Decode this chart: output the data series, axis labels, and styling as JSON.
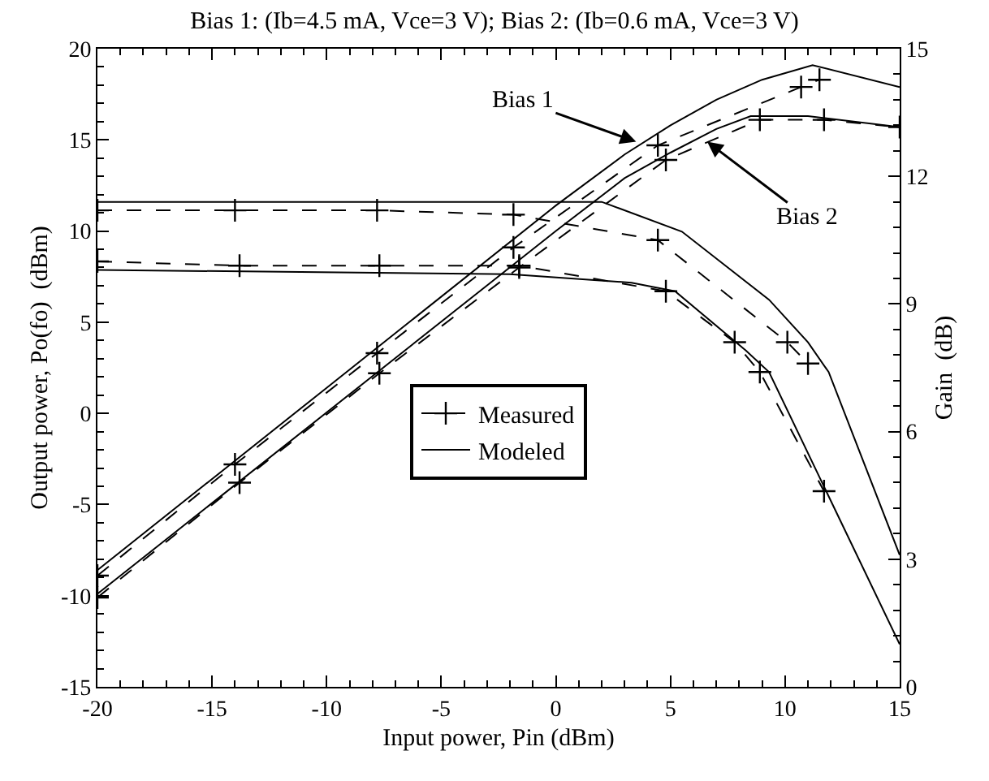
{
  "chart_data": {
    "type": "line",
    "title": "Bias 1: (Ib=4.5 mA, Vce=3 V); Bias 2: (Ib=0.6 mA, Vce=3 V)",
    "xlabel": "Input power, Pin (dBm)",
    "ylabel": "Output power, Po(fo)  (dBm)",
    "y2label": "Gain  (dB)",
    "xlim": [
      -20,
      15
    ],
    "xticks": [
      -20,
      -15,
      -10,
      -5,
      0,
      5,
      10,
      15
    ],
    "ylim": [
      -15,
      20
    ],
    "yticks": [
      -15,
      -10,
      -5,
      0,
      5,
      10,
      15,
      20
    ],
    "y2lim": [
      0,
      15
    ],
    "y2ticks": [
      0,
      3,
      6,
      9,
      12,
      15
    ],
    "grid": false,
    "legend": "center",
    "series": [
      {
        "name": "Measured",
        "color": "#000000",
        "line_style": "dashed",
        "marker": "cross",
        "x": [
          -20,
          -14,
          -7.8,
          -1.85,
          4.45,
          10.7,
          11.5
        ],
        "values": [
          -8.9,
          -2.8,
          3.3,
          9.1,
          14.7,
          17.9,
          18.3
        ]
      },
      {
        "name": "Modeled",
        "color": "#000000",
        "line_style": "solid",
        "marker": "none",
        "x": [
          -20,
          -10,
          0,
          3,
          5,
          7,
          9,
          11.2,
          15
        ],
        "values": [
          -8.6,
          1.4,
          11.4,
          14.2,
          15.8,
          17.2,
          18.3,
          19.1,
          17.9
        ]
      },
      {
        "color": "#000000",
        "line_style": "dashed",
        "marker": "cross",
        "x": [
          -20,
          -13.8,
          -7.7,
          -1.6,
          4.8,
          8.9,
          11.7,
          15
        ],
        "values": [
          -10.1,
          -3.8,
          2.2,
          8.0,
          13.9,
          16.1,
          16.1,
          15.7
        ]
      },
      {
        "color": "#000000",
        "line_style": "solid",
        "marker": "none",
        "x": [
          -20,
          0,
          3,
          5,
          7,
          8.5,
          11,
          15
        ],
        "values": [
          -9.9,
          10.0,
          12.9,
          14.3,
          15.6,
          16.3,
          16.3,
          15.7
        ]
      },
      {
        "color": "#000000",
        "line_style": "dashed",
        "marker": "cross",
        "axis": "y2",
        "x": [
          -20,
          -14,
          -7.8,
          -1.85,
          4.45,
          10.1,
          11
        ],
        "values": [
          11.2,
          11.2,
          11.2,
          11.1,
          10.5,
          8.1,
          7.6
        ]
      },
      {
        "color": "#000000",
        "line_style": "solid",
        "marker": "none",
        "axis": "y2",
        "x": [
          -20,
          2,
          5.5,
          9.3,
          11,
          11.9,
          15
        ],
        "values": [
          11.4,
          11.4,
          10.7,
          9.1,
          8.1,
          7.4,
          3.1
        ]
      },
      {
        "color": "#000000",
        "line_style": "dashed",
        "marker": "cross",
        "axis": "y2",
        "x": [
          -20,
          -13.8,
          -7.7,
          -1.6,
          4.8,
          7.8,
          8.9,
          11.7
        ],
        "values": [
          10.0,
          9.9,
          9.9,
          9.9,
          9.3,
          8.1,
          7.4,
          4.6
        ]
      },
      {
        "color": "#000000",
        "line_style": "solid",
        "marker": "none",
        "axis": "y2",
        "x": [
          -20,
          -2,
          3.3,
          5.2,
          8.3,
          9.3,
          15
        ],
        "values": [
          9.8,
          9.7,
          9.5,
          9.3,
          7.9,
          7.4,
          1.0
        ]
      }
    ],
    "annotations": [
      {
        "text": "Bias 1",
        "x": 3.5,
        "y": 14.9
      },
      {
        "text": "Bias 2",
        "x": 6.6,
        "y": 14.9
      }
    ]
  }
}
